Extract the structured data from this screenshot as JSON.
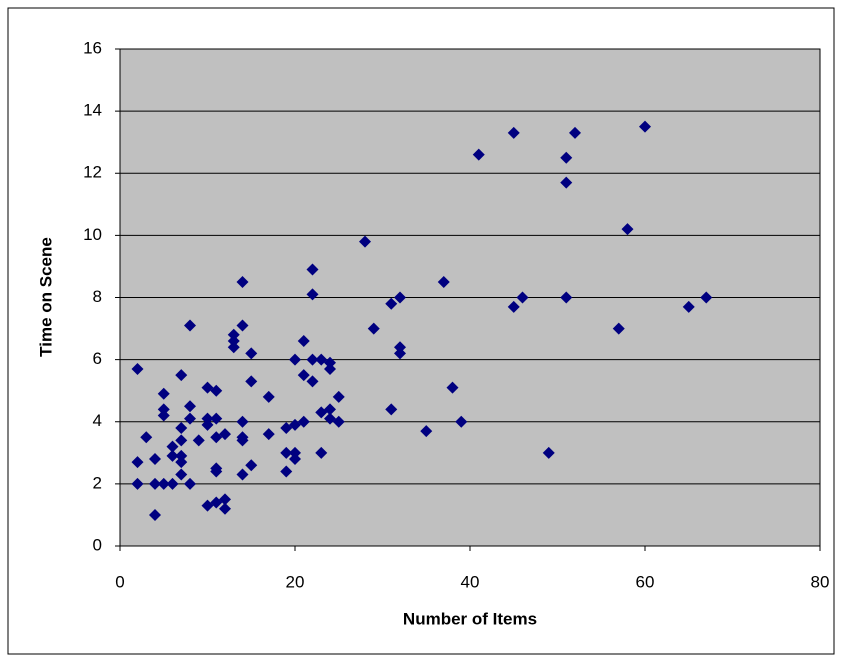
{
  "chart_data": {
    "type": "scatter",
    "xlabel": "Number of Items",
    "ylabel": "Time on Scene",
    "xlim": [
      0,
      80
    ],
    "xticks": [
      0,
      20,
      40,
      60,
      80
    ],
    "ylim": [
      0,
      16
    ],
    "yticks": [
      0,
      2,
      4,
      6,
      8,
      10,
      12,
      14,
      16
    ],
    "grid": true,
    "background": "#c0c0c0",
    "series": [
      {
        "color": "#000080",
        "x": [
          2,
          2,
          2,
          3,
          4,
          4,
          4,
          5,
          5,
          5,
          5,
          6,
          6,
          6,
          7,
          7,
          7,
          7,
          7,
          7,
          8,
          8,
          8,
          8,
          9,
          10,
          10,
          10,
          10,
          11,
          11,
          11,
          11,
          11,
          11,
          12,
          12,
          12,
          13,
          13,
          13,
          14,
          14,
          14,
          14,
          14,
          14,
          15,
          15,
          15,
          17,
          17,
          19,
          19,
          19,
          20,
          20,
          20,
          20,
          21,
          21,
          21,
          22,
          22,
          22,
          22,
          23,
          23,
          23,
          24,
          24,
          24,
          24,
          25,
          25,
          28,
          29,
          31,
          31,
          32,
          32,
          32,
          35,
          37,
          38,
          39,
          41,
          45,
          45,
          46,
          49,
          51,
          51,
          51,
          52,
          57,
          58,
          60,
          65,
          67
        ],
        "values": [
          5.7,
          2.7,
          2.0,
          3.5,
          1.0,
          2.0,
          2.8,
          4.9,
          4.4,
          4.2,
          2.0,
          2.0,
          3.2,
          2.9,
          5.5,
          3.8,
          3.4,
          2.9,
          2.7,
          2.3,
          7.1,
          4.5,
          4.1,
          2.0,
          3.4,
          5.1,
          4.1,
          3.9,
          1.3,
          5.0,
          4.1,
          3.5,
          2.5,
          2.4,
          1.4,
          3.6,
          1.5,
          1.2,
          6.8,
          6.6,
          6.4,
          8.5,
          7.1,
          4.0,
          3.5,
          3.4,
          2.3,
          6.2,
          5.3,
          2.6,
          4.8,
          3.6,
          3.8,
          3.0,
          2.4,
          6.0,
          3.9,
          3.0,
          2.8,
          6.6,
          5.5,
          4.0,
          8.9,
          8.1,
          6.0,
          5.3,
          6.0,
          4.3,
          3.0,
          5.9,
          5.7,
          4.4,
          4.1,
          4.8,
          4.0,
          9.8,
          7.0,
          7.8,
          4.4,
          8.0,
          6.4,
          6.2,
          3.7,
          8.5,
          5.1,
          4.0,
          12.6,
          13.3,
          7.7,
          8.0,
          3.0,
          12.5,
          11.7,
          8.0,
          13.3,
          7.0,
          10.2,
          13.5,
          7.7,
          8.0
        ]
      }
    ]
  }
}
